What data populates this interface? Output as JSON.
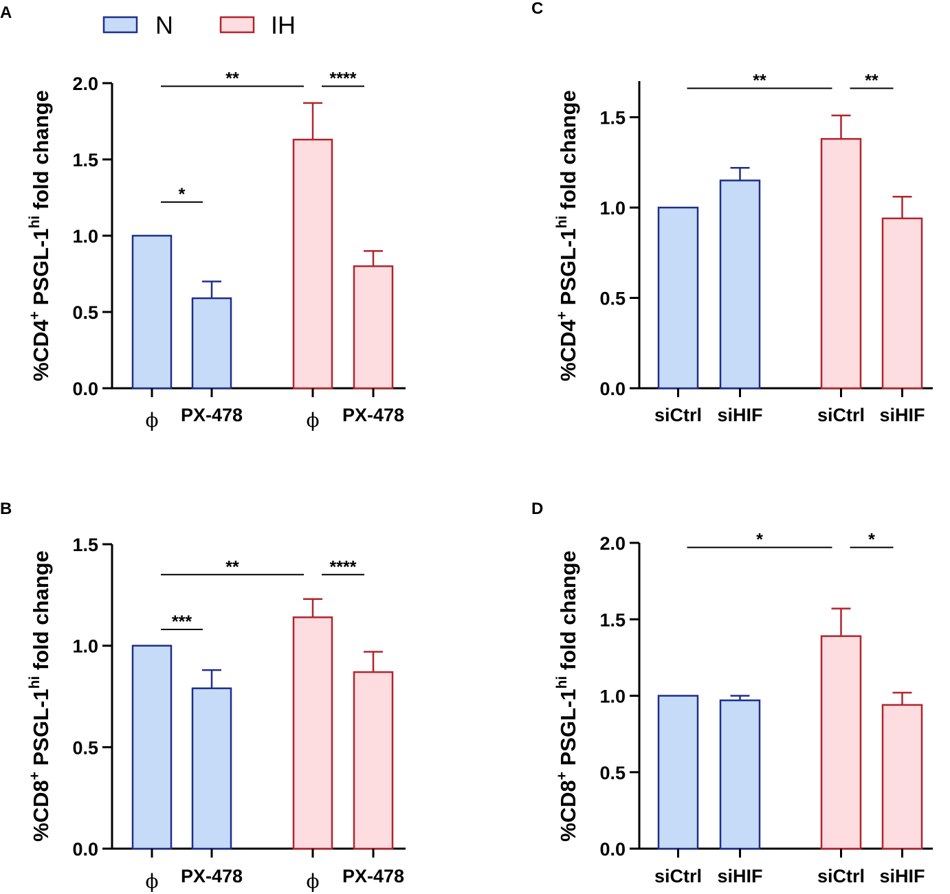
{
  "legend": {
    "items": [
      {
        "label": "N",
        "fill": "#c5dbf7",
        "stroke": "#1f2d8c"
      },
      {
        "label": "IH",
        "fill": "#fddde0",
        "stroke": "#b3232c"
      }
    ]
  },
  "chart_data": [
    {
      "id": "A",
      "panel_label": "A",
      "type": "bar",
      "ylabel": {
        "prefix": "%CD4",
        "sup1": "+",
        "middle": " PSGL-1",
        "sup2": "hi",
        "suffix": " fold change"
      },
      "ylim": [
        0,
        2.0
      ],
      "yticks": [
        {
          "v": 0.0,
          "t": "0.0"
        },
        {
          "v": 0.5,
          "t": "0.5"
        },
        {
          "v": 1.0,
          "t": "1.0"
        },
        {
          "v": 1.5,
          "t": "1.5"
        },
        {
          "v": 2.0,
          "t": "2.0"
        }
      ],
      "categories": [
        "ϕ",
        "PX-478",
        "ϕ",
        "PX-478"
      ],
      "groups": [
        "N",
        "N",
        "IH",
        "IH"
      ],
      "values": [
        1.0,
        0.59,
        1.63,
        0.8
      ],
      "errors": [
        0,
        0.11,
        0.24,
        0.1
      ],
      "significance": [
        {
          "from": 0,
          "to": 1,
          "y": 1.22,
          "label": "*"
        },
        {
          "from": 0,
          "to": 2,
          "y": 1.98,
          "label": "**"
        },
        {
          "from": 2,
          "to": 3,
          "y": 1.98,
          "label": "****"
        }
      ]
    },
    {
      "id": "B",
      "panel_label": "B",
      "type": "bar",
      "ylabel": {
        "prefix": "%CD8",
        "sup1": "+",
        "middle": " PSGL-1",
        "sup2": "hi",
        "suffix": " fold change"
      },
      "ylim": [
        0,
        1.5
      ],
      "yticks": [
        {
          "v": 0.0,
          "t": "0.0"
        },
        {
          "v": 0.5,
          "t": "0.5"
        },
        {
          "v": 1.0,
          "t": "1.0"
        },
        {
          "v": 1.5,
          "t": "1.5"
        }
      ],
      "categories": [
        "ϕ",
        "PX-478",
        "ϕ",
        "PX-478"
      ],
      "groups": [
        "N",
        "N",
        "IH",
        "IH"
      ],
      "values": [
        1.0,
        0.79,
        1.14,
        0.87
      ],
      "errors": [
        0,
        0.09,
        0.09,
        0.1
      ],
      "significance": [
        {
          "from": 0,
          "to": 1,
          "y": 1.08,
          "label": "***"
        },
        {
          "from": 0,
          "to": 2,
          "y": 1.35,
          "label": "**"
        },
        {
          "from": 2,
          "to": 3,
          "y": 1.35,
          "label": "****"
        }
      ]
    },
    {
      "id": "C",
      "panel_label": "C",
      "type": "bar",
      "ylabel": {
        "prefix": "%CD4",
        "sup1": "+",
        "middle": " PSGL-1",
        "sup2": "hi",
        "suffix": " fold change"
      },
      "ylim": [
        0,
        1.7
      ],
      "yticks": [
        {
          "v": 0.0,
          "t": "0.0"
        },
        {
          "v": 0.5,
          "t": "0.5"
        },
        {
          "v": 1.0,
          "t": "1.0"
        },
        {
          "v": 1.5,
          "t": "1.5"
        }
      ],
      "categories": [
        "siCtrl",
        "siHIF",
        "siCtrl",
        "siHIF"
      ],
      "groups": [
        "N",
        "N",
        "IH",
        "IH"
      ],
      "values": [
        1.0,
        1.15,
        1.38,
        0.94
      ],
      "errors": [
        0,
        0.07,
        0.13,
        0.12
      ],
      "significance": [
        {
          "from": 0,
          "to": 2,
          "y": 1.66,
          "label": "**"
        },
        {
          "from": 2,
          "to": 3,
          "y": 1.66,
          "label": "**"
        }
      ]
    },
    {
      "id": "D",
      "panel_label": "D",
      "type": "bar",
      "ylabel": {
        "prefix": "%CD8",
        "sup1": "+",
        "middle": " PSGL-1",
        "sup2": "hi",
        "suffix": " fold change"
      },
      "ylim": [
        0,
        2.0
      ],
      "yticks": [
        {
          "v": 0.0,
          "t": "0.0"
        },
        {
          "v": 0.5,
          "t": "0.5"
        },
        {
          "v": 1.0,
          "t": "1.0"
        },
        {
          "v": 1.5,
          "t": "1.5"
        },
        {
          "v": 2.0,
          "t": "2.0"
        }
      ],
      "categories": [
        "siCtrl",
        "siHIF",
        "siCtrl",
        "siHIF"
      ],
      "groups": [
        "N",
        "N",
        "IH",
        "IH"
      ],
      "values": [
        1.0,
        0.97,
        1.39,
        0.94
      ],
      "errors": [
        0,
        0.03,
        0.18,
        0.08
      ],
      "significance": [
        {
          "from": 0,
          "to": 2,
          "y": 1.97,
          "label": "*"
        },
        {
          "from": 2,
          "to": 3,
          "y": 1.97,
          "label": "*"
        }
      ]
    }
  ]
}
